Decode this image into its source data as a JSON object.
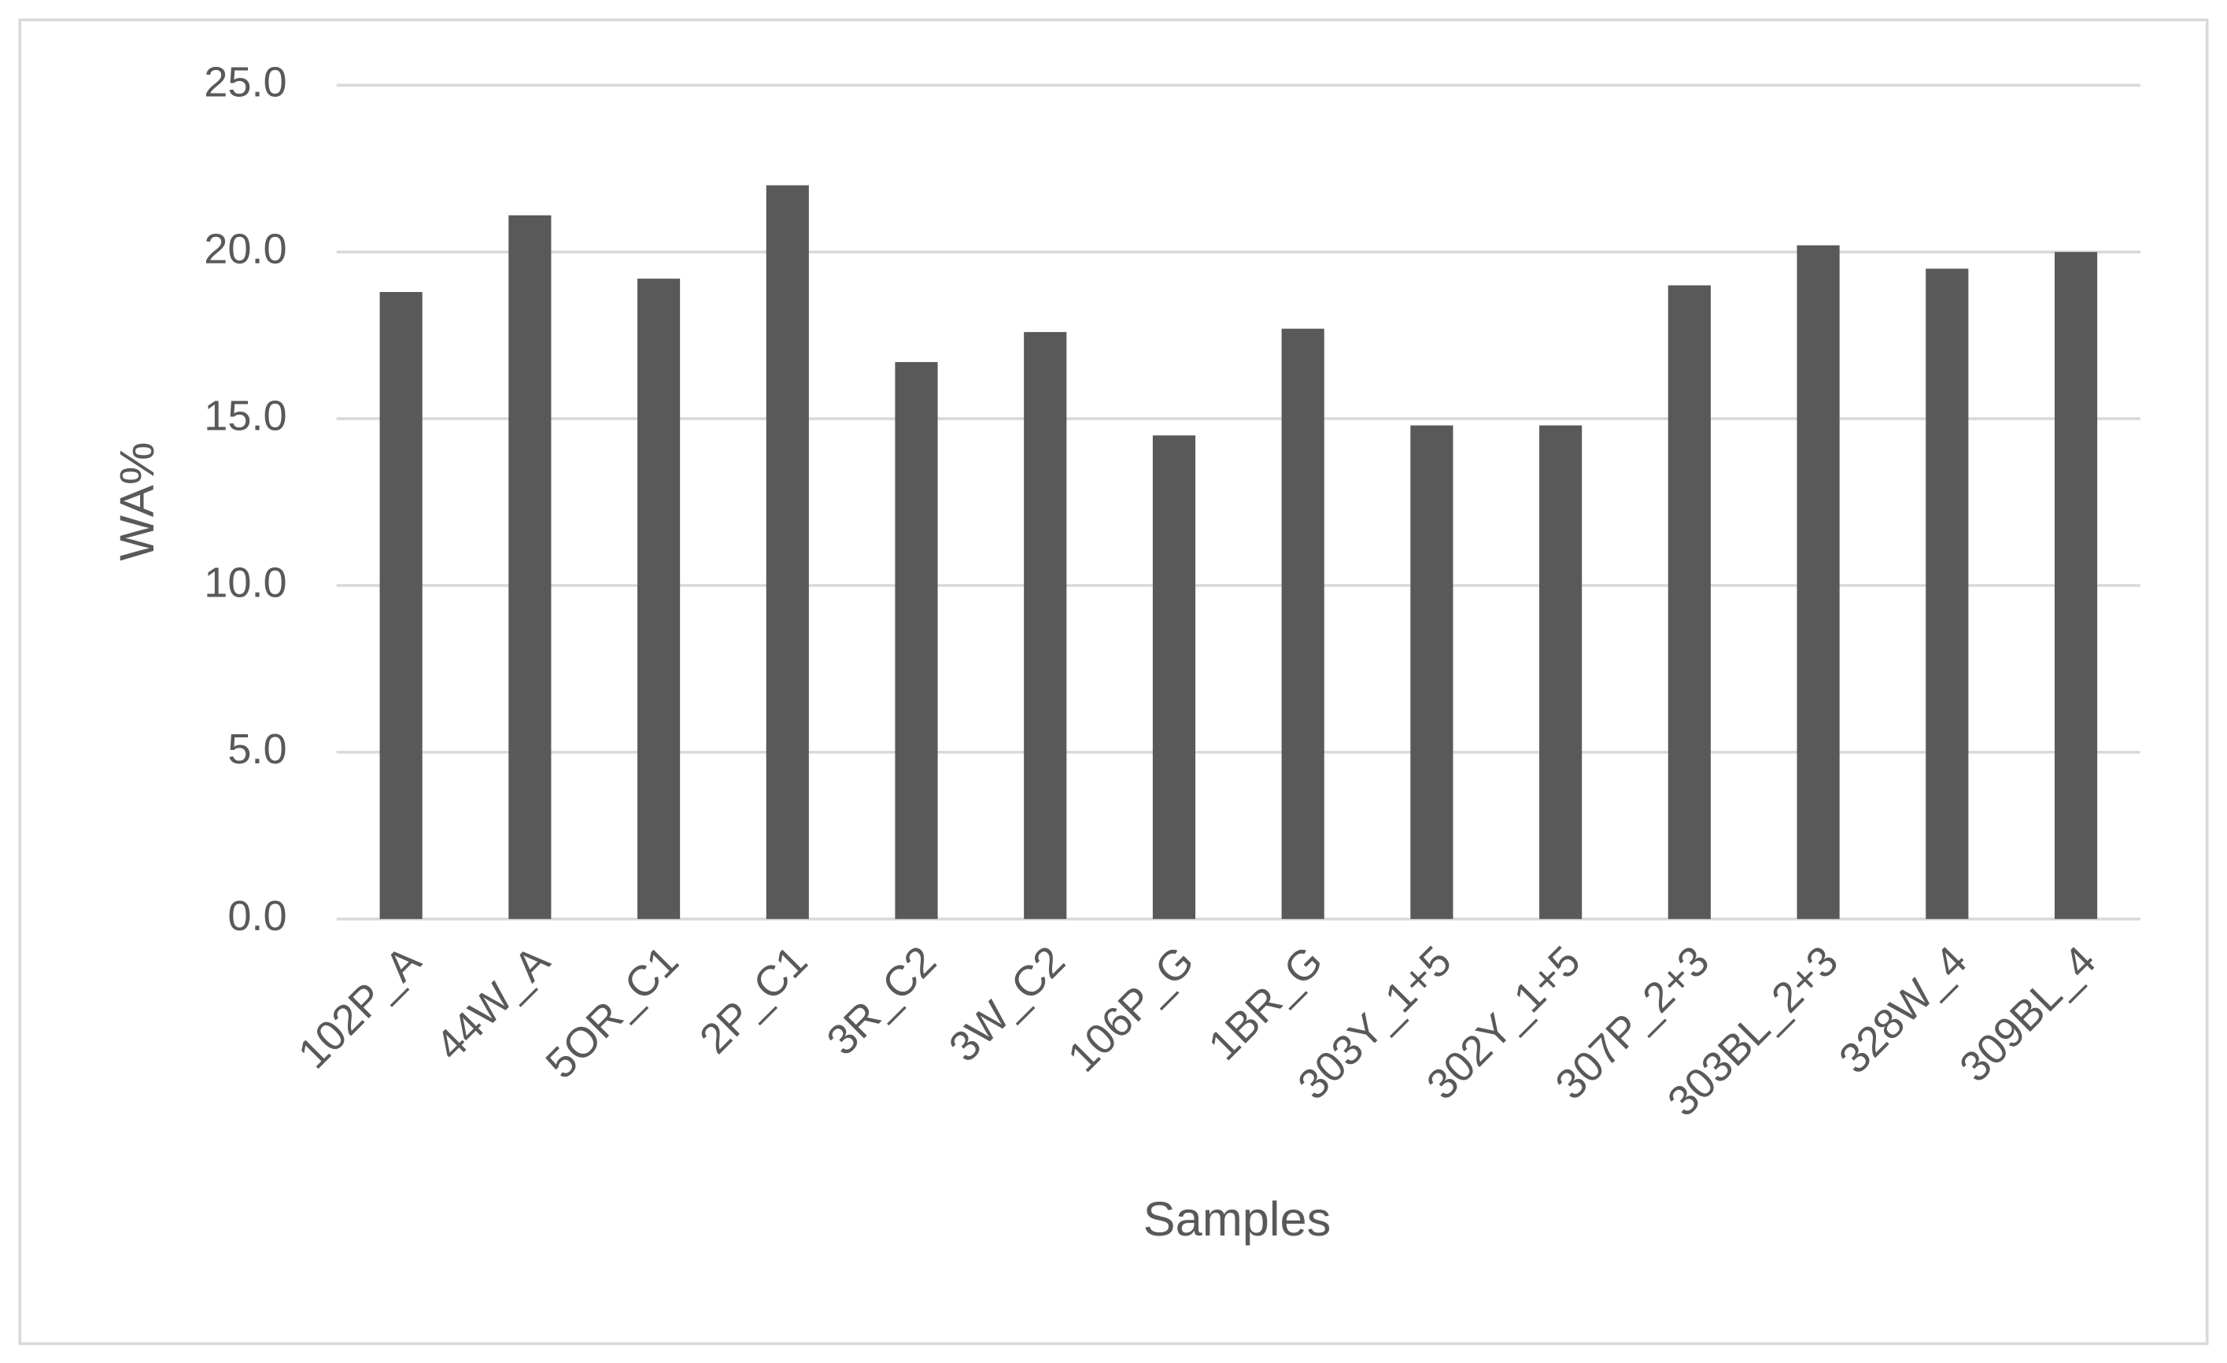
{
  "chart_data": {
    "type": "bar",
    "x_label": "Samples",
    "y_label": "WA%",
    "categories": [
      "102P_A",
      "44W_A",
      "5OR_C1",
      "2P_C1",
      "3R_C2",
      "3W_C2",
      "106P_G",
      "1BR_G",
      "303Y_1+5",
      "302Y_1+5",
      "307P_2+3",
      "303BL_2+3",
      "328W_4",
      "309BL_4"
    ],
    "values": [
      18.8,
      21.1,
      19.2,
      22.0,
      16.7,
      17.6,
      14.5,
      17.7,
      14.8,
      14.8,
      19.0,
      20.2,
      19.5,
      20.0
    ],
    "color": "#595959",
    "ylim": [
      0,
      25
    ],
    "yticks": [
      {
        "value": 0,
        "label": "0.0"
      },
      {
        "value": 5,
        "label": "5.0"
      },
      {
        "value": 10,
        "label": "10.0"
      },
      {
        "value": 15,
        "label": "15.0"
      },
      {
        "value": 20,
        "label": "20.0"
      },
      {
        "value": 25,
        "label": "25.0"
      }
    ],
    "grid": true
  }
}
